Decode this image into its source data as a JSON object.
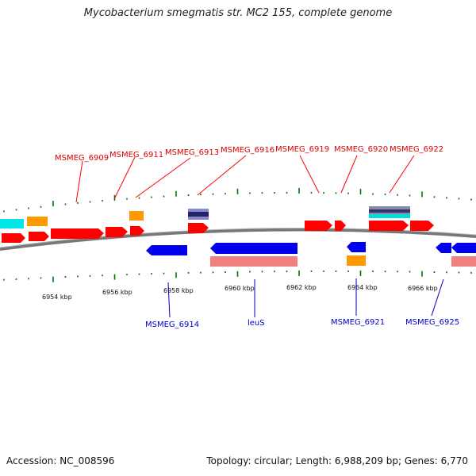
{
  "title": "Mycobacterium smegmatis str. MC2 155, complete genome",
  "footer": {
    "accession": "Accession: NC_008596",
    "summary": "Topology: circular; Length: 6,988,209 bp; Genes: 6,770"
  },
  "colors": {
    "forward": "#ff0000",
    "reverse": "#0000ff",
    "rna": "#ff9900",
    "cds_light": "#f08080",
    "other": "#00dddd",
    "backbone": "#888888",
    "tick": "#007700",
    "top_label": "#dd0000",
    "bottom_label": "#0000cc"
  },
  "scale_labels": [
    "6954 kbp",
    "6956 kbp",
    "6958 kbp",
    "6960 kbp",
    "6962 kbp",
    "6964 kbp",
    "6966 kbp"
  ],
  "top_labels": [
    "MSMEG_6909",
    "MSMEG_6911",
    "MSMEG_6913",
    "MSMEG_6916",
    "MSMEG_6919",
    "MSMEG_6920",
    "MSMEG_6922"
  ],
  "bottom_labels": [
    "MSMEG_6914",
    "leuS",
    "MSMEG_6921",
    "MSMEG_6925"
  ]
}
